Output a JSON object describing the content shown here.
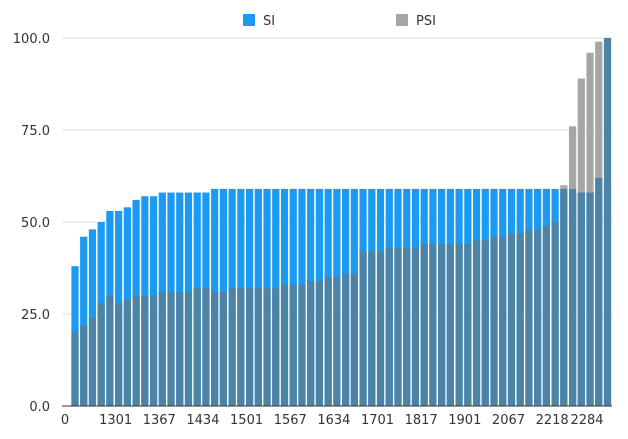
{
  "chart_data": {
    "type": "bar",
    "stacking": "overlay",
    "legend": {
      "placement": "top",
      "items": [
        {
          "name": "SI",
          "color": "#1a9af0"
        },
        {
          "name": "PSI",
          "color": "#a6a6a6"
        }
      ]
    },
    "overlay_color": "#4d84a6",
    "ylim": [
      0,
      100
    ],
    "y_ticks": [
      "0.0",
      "25.0",
      "50.0",
      "75.0",
      "100.0"
    ],
    "y_tick_values": [
      0,
      25,
      50,
      75,
      100
    ],
    "x_tick_labels": [
      "0",
      "1301",
      "1367",
      "1434",
      "1501",
      "1567",
      "1634",
      "1701",
      "1817",
      "1901",
      "2067",
      "2218",
      "2284"
    ],
    "x_tick_positions": [
      0,
      5,
      10,
      15,
      20,
      25,
      30,
      35,
      40,
      45,
      50,
      55,
      59
    ],
    "grid": true,
    "series": [
      {
        "name": "SI",
        "values": [
          38,
          46,
          48,
          50,
          53,
          53,
          54,
          56,
          57,
          57,
          58,
          58,
          58,
          58,
          58,
          58,
          59,
          59,
          59,
          59,
          59,
          59,
          59,
          59,
          59,
          59,
          59,
          59,
          59,
          59,
          59,
          59,
          59,
          59,
          59,
          59,
          59,
          59,
          59,
          59,
          59,
          59,
          59,
          59,
          59,
          59,
          59,
          59,
          59,
          59,
          59,
          59,
          59,
          59,
          59,
          59,
          58,
          58,
          58,
          58,
          59,
          60
        ]
      },
      {
        "name": "PSI",
        "values": [
          0,
          0,
          0,
          0,
          0,
          0,
          0,
          0,
          0,
          0,
          0,
          0,
          0,
          0,
          0,
          0,
          0,
          0,
          0,
          0,
          0,
          0,
          0,
          0,
          0,
          0,
          0,
          0,
          0,
          0,
          0,
          0,
          0,
          0,
          0,
          0,
          0,
          0,
          0,
          0,
          0,
          0,
          0,
          0,
          0,
          0,
          0,
          0,
          0,
          0,
          0,
          0,
          0,
          0,
          0,
          0,
          60,
          76,
          89,
          96,
          99,
          100
        ]
      }
    ],
    "overlap": [
      20,
      22,
      24,
      28,
      30,
      28,
      29,
      30,
      30,
      30,
      31,
      31,
      31,
      31,
      32,
      32,
      31,
      31,
      32,
      32,
      32,
      32,
      32,
      32,
      33,
      33,
      33,
      34,
      34,
      35,
      35,
      36,
      36,
      42,
      42,
      42,
      43,
      43,
      43,
      43,
      44,
      44,
      44,
      44,
      44,
      44,
      45,
      45,
      46,
      46,
      47,
      47,
      48,
      48,
      49,
      50,
      59,
      59,
      58,
      58,
      62,
      100
    ]
  }
}
